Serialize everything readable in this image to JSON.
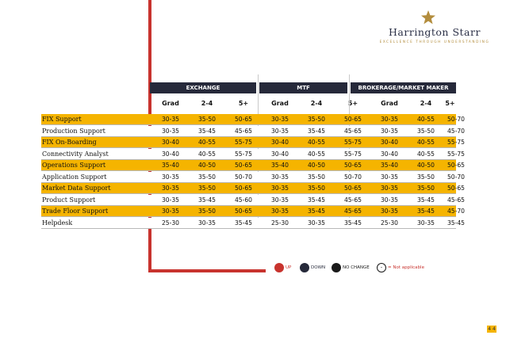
{
  "brand": {
    "name": "Harrington Starr",
    "tagline": "EXCELLENCE THROUGH UNDERSTANDING"
  },
  "colors": {
    "accent": "#f5b400",
    "header": "#26293a",
    "line": "#c8332e"
  },
  "groups": [
    "EXCHANGE",
    "MTF",
    "BROKERAGE/MARKET MAKER"
  ],
  "subheaders": [
    "Grad",
    "2-4",
    "5+",
    "Grad",
    "2-4",
    "5+",
    "Grad",
    "2-4",
    "5+"
  ],
  "rows": [
    {
      "label": "FIX Support",
      "values": [
        "30-35",
        "35-50",
        "50-65",
        "30-35",
        "35-50",
        "50-65",
        "30-35",
        "40-55",
        "50-70"
      ]
    },
    {
      "label": "Production Support",
      "values": [
        "30-35",
        "35-45",
        "45-65",
        "30-35",
        "35-45",
        "45-65",
        "30-35",
        "35-50",
        "45-70"
      ]
    },
    {
      "label": "FIX On-Boarding",
      "values": [
        "30-40",
        "40-55",
        "55-75",
        "30-40",
        "40-55",
        "55-75",
        "30-40",
        "40-55",
        "55-75"
      ]
    },
    {
      "label": "Connectivity Analyst",
      "values": [
        "30-40",
        "40-55",
        "55-75",
        "30-40",
        "40-55",
        "55-75",
        "30-40",
        "40-55",
        "55-75"
      ]
    },
    {
      "label": "Operations Support",
      "values": [
        "35-40",
        "40-50",
        "50-65",
        "35-40",
        "40-50",
        "50-65",
        "35-40",
        "40-50",
        "50-65"
      ]
    },
    {
      "label": "Application Support",
      "values": [
        "30-35",
        "35-50",
        "50-70",
        "30-35",
        "35-50",
        "50-70",
        "30-35",
        "35-50",
        "50-70"
      ]
    },
    {
      "label": "Market Data Support",
      "values": [
        "30-35",
        "35-50",
        "50-65",
        "30-35",
        "35-50",
        "50-65",
        "30-35",
        "35-50",
        "50-65"
      ]
    },
    {
      "label": "Product Support",
      "values": [
        "30-35",
        "35-45",
        "45-60",
        "30-35",
        "35-45",
        "45-65",
        "30-35",
        "35-45",
        "45-65"
      ]
    },
    {
      "label": "Trade Floor Support",
      "values": [
        "30-35",
        "35-50",
        "50-65",
        "30-35",
        "35-45",
        "45-65",
        "30-35",
        "35-45",
        "45-70"
      ]
    },
    {
      "label": "Helpdesk",
      "values": [
        "25-30",
        "30-35",
        "35-45",
        "25-30",
        "30-35",
        "35-45",
        "25-30",
        "30-35",
        "35-45"
      ]
    }
  ],
  "legend": {
    "up": {
      "label": "UP",
      "color": "#c8332e"
    },
    "down": {
      "label": "DOWN",
      "color": "#26293a"
    },
    "nochange": {
      "label": "NO CHANGE",
      "color": "#1a1a1a"
    },
    "na": {
      "symbol": "-",
      "label": "= Not applicable"
    }
  },
  "page_mark": "4 4"
}
